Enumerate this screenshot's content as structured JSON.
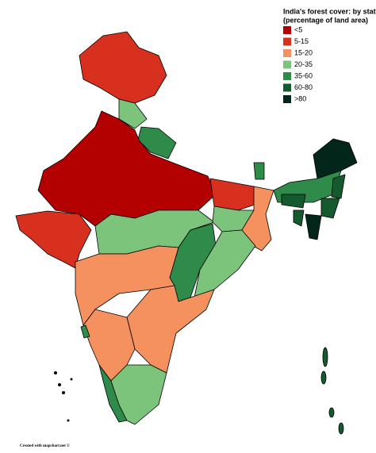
{
  "map": {
    "title": [
      "India's forest cover: by state",
      "(percentage of land area)"
    ],
    "legend": [
      {
        "label": "<5",
        "color": "#b30000"
      },
      {
        "label": "5-15",
        "color": "#d7301f"
      },
      {
        "label": "15-20",
        "color": "#f4915e"
      },
      {
        "label": "20-35",
        "color": "#7cc47c"
      },
      {
        "label": "35-60",
        "color": "#2e8b4a"
      },
      {
        "label": "60-80",
        "color": "#155a2e"
      },
      {
        "label": ">80",
        "color": "#03261a"
      }
    ],
    "credit": "Created with mapchart.net ©"
  }
}
